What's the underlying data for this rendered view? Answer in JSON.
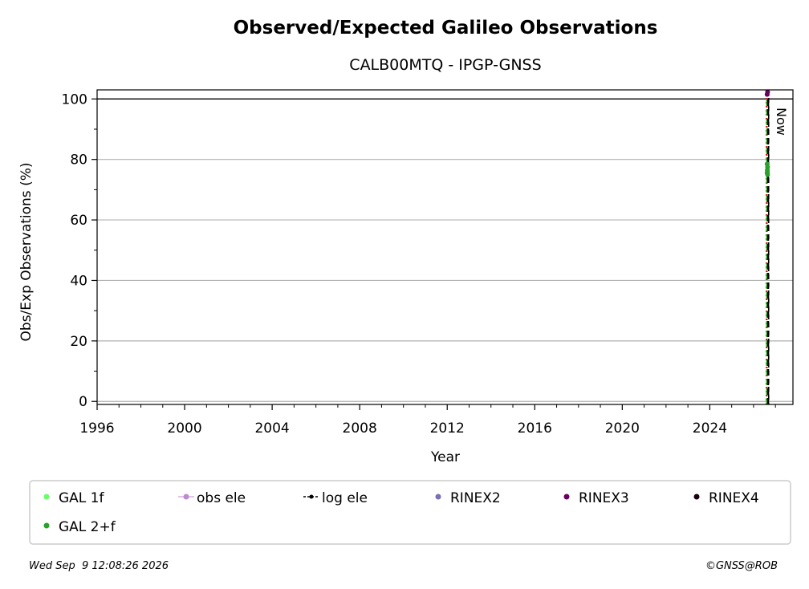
{
  "chart_data": {
    "type": "scatter",
    "title": "Observed/Expected Galileo Observations",
    "subtitle": "CALB00MTQ - IPGP-GNSS",
    "xlabel": "Year",
    "ylabel": "Obs/Exp Observations (%)",
    "xlim": [
      1996,
      2027.8
    ],
    "ylim": [
      -1,
      103
    ],
    "x_ticks": [
      "1996",
      "2000",
      "2004",
      "2008",
      "2012",
      "2016",
      "2020",
      "2024"
    ],
    "y_ticks": [
      "0",
      "20",
      "40",
      "60",
      "80",
      "100"
    ],
    "grid": "horizontal",
    "reference_line": 100,
    "now_marker": {
      "x": 2026.69,
      "label": "Now"
    },
    "vertical_lines": [
      {
        "x": 2026.6,
        "color": "#d62728",
        "style": "dotted"
      },
      {
        "x": 2026.62,
        "color": "#2ca02c",
        "style": "dashed"
      },
      {
        "x": 2026.67,
        "color": "#000000",
        "style": "dashed"
      }
    ],
    "series": [
      {
        "name": "GAL 1f",
        "color": "#66ff66",
        "marker": "dot",
        "points": []
      },
      {
        "name": "obs ele",
        "color": "#c088d0",
        "marker": "line-dot",
        "points": []
      },
      {
        "name": "log ele",
        "color": "#000000",
        "marker": "dash-dot",
        "points": []
      },
      {
        "name": "RINEX2",
        "color": "#7b6fb5",
        "marker": "dot",
        "points": []
      },
      {
        "name": "RINEX3",
        "color": "#6a005f",
        "marker": "dot",
        "points": [
          [
            2026.62,
            101.5
          ],
          [
            2026.64,
            102.3
          ]
        ]
      },
      {
        "name": "RINEX4",
        "color": "#1a0010",
        "marker": "dot",
        "points": []
      },
      {
        "name": "GAL 2+f",
        "color": "#2ca02c",
        "marker": "dot",
        "points": [
          [
            2026.62,
            75.5
          ],
          [
            2026.63,
            76.5
          ],
          [
            2026.64,
            77.5
          ],
          [
            2026.62,
            78.5
          ],
          [
            2026.63,
            76.0
          ],
          [
            2026.64,
            75.0
          ]
        ]
      }
    ],
    "legend_placement": "bottom"
  },
  "footer": {
    "timestamp": "Wed Sep  9 12:08:26 2026",
    "credit": "©GNSS@ROB"
  }
}
